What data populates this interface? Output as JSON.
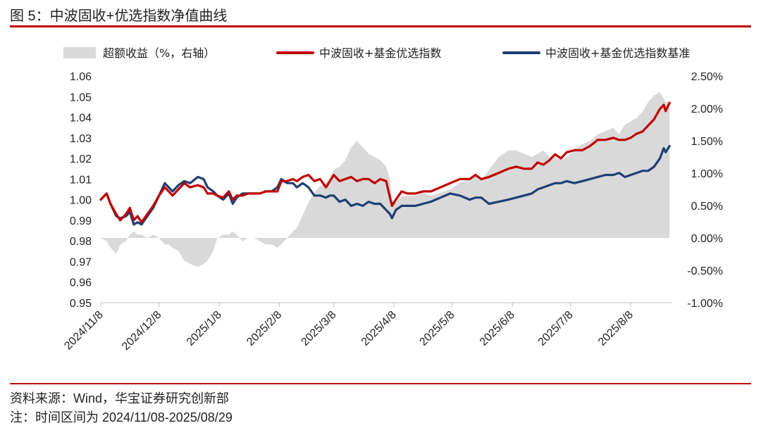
{
  "header": {
    "title": "图 5：中波固收+优选指数净值曲线"
  },
  "footer": {
    "source": "资料来源：Wind，华宝证券研究创新部",
    "note": "注：时间区间为 2024/11/08-2025/08/29"
  },
  "colors": {
    "index": "#c00000",
    "benchmark": "#1f3f74",
    "excess": "#d9d9d9",
    "rule": "#c00000"
  },
  "chart_data": {
    "type": "line",
    "title": "中波固收+优选指数净值曲线",
    "x_tick_labels": [
      "2024/11/8",
      "2024/12/8",
      "2025/1/8",
      "2025/2/8",
      "2025/3/8",
      "2025/4/8",
      "2025/5/8",
      "2025/6/8",
      "2025/7/8",
      "2025/8/8"
    ],
    "x_tick_days": [
      0,
      30,
      61,
      92,
      120,
      151,
      181,
      212,
      242,
      273
    ],
    "x_range_days": [
      0,
      294
    ],
    "y_left": {
      "lim": [
        0.95,
        1.06
      ],
      "ticks": [
        "0.95",
        "0.96",
        "0.97",
        "0.98",
        "0.99",
        "1.00",
        "1.01",
        "1.02",
        "1.03",
        "1.04",
        "1.05",
        "1.06"
      ]
    },
    "y_right": {
      "lim": [
        -1.0,
        2.5
      ],
      "unit": "%",
      "ticks": [
        "-1.00%",
        "-0.50%",
        "0.00%",
        "0.50%",
        "1.00%",
        "1.50%",
        "2.00%",
        "2.50%"
      ]
    },
    "legend": [
      {
        "name": "超额收益（%，右轴）",
        "kind": "area"
      },
      {
        "name": "中波固收+基金优选指数",
        "kind": "line"
      },
      {
        "name": "中波固收+基金优选指数基准",
        "kind": "line"
      }
    ],
    "series": [
      {
        "name": "中波固收+基金优选指数",
        "axis": "left",
        "points": [
          [
            0,
            1.0
          ],
          [
            3,
            1.003
          ],
          [
            5,
            0.998
          ],
          [
            8,
            0.993
          ],
          [
            10,
            0.99
          ],
          [
            13,
            0.993
          ],
          [
            15,
            0.996
          ],
          [
            17,
            0.99
          ],
          [
            19,
            0.992
          ],
          [
            21,
            0.989
          ],
          [
            24,
            0.993
          ],
          [
            27,
            0.997
          ],
          [
            30,
            1.002
          ],
          [
            33,
            1.006
          ],
          [
            35,
            1.004
          ],
          [
            37,
            1.002
          ],
          [
            40,
            1.005
          ],
          [
            43,
            1.008
          ],
          [
            46,
            1.006
          ],
          [
            50,
            1.007
          ],
          [
            53,
            1.006
          ],
          [
            55,
            1.003
          ],
          [
            58,
            1.003
          ],
          [
            60,
            1.002
          ],
          [
            63,
            1.001
          ],
          [
            66,
            1.004
          ],
          [
            68,
            1.0
          ],
          [
            70,
            1.002
          ],
          [
            73,
            1.002
          ],
          [
            76,
            1.003
          ],
          [
            79,
            1.003
          ],
          [
            82,
            1.003
          ],
          [
            85,
            1.004
          ],
          [
            88,
            1.004
          ],
          [
            91,
            1.004
          ],
          [
            93,
            1.009
          ],
          [
            96,
            1.009
          ],
          [
            99,
            1.01
          ],
          [
            101,
            1.009
          ],
          [
            104,
            1.011
          ],
          [
            107,
            1.012
          ],
          [
            110,
            1.009
          ],
          [
            113,
            1.01
          ],
          [
            116,
            1.006
          ],
          [
            118,
            1.009
          ],
          [
            120,
            1.012
          ],
          [
            123,
            1.009
          ],
          [
            126,
            1.01
          ],
          [
            129,
            1.011
          ],
          [
            132,
            1.009
          ],
          [
            135,
            1.01
          ],
          [
            138,
            1.01
          ],
          [
            141,
            1.008
          ],
          [
            144,
            1.01
          ],
          [
            147,
            1.009
          ],
          [
            149,
            1.001
          ],
          [
            150,
            0.997
          ],
          [
            152,
            1.0
          ],
          [
            155,
            1.004
          ],
          [
            158,
            1.003
          ],
          [
            162,
            1.003
          ],
          [
            166,
            1.004
          ],
          [
            170,
            1.004
          ],
          [
            175,
            1.006
          ],
          [
            180,
            1.008
          ],
          [
            185,
            1.01
          ],
          [
            190,
            1.01
          ],
          [
            193,
            1.012
          ],
          [
            196,
            1.01
          ],
          [
            200,
            1.011
          ],
          [
            205,
            1.013
          ],
          [
            210,
            1.015
          ],
          [
            214,
            1.016
          ],
          [
            218,
            1.015
          ],
          [
            222,
            1.015
          ],
          [
            225,
            1.018
          ],
          [
            228,
            1.017
          ],
          [
            231,
            1.019
          ],
          [
            234,
            1.022
          ],
          [
            237,
            1.02
          ],
          [
            240,
            1.023
          ],
          [
            244,
            1.024
          ],
          [
            248,
            1.024
          ],
          [
            252,
            1.026
          ],
          [
            256,
            1.029
          ],
          [
            260,
            1.029
          ],
          [
            264,
            1.03
          ],
          [
            267,
            1.029
          ],
          [
            270,
            1.029
          ],
          [
            273,
            1.03
          ],
          [
            276,
            1.032
          ],
          [
            279,
            1.033
          ],
          [
            282,
            1.036
          ],
          [
            285,
            1.039
          ],
          [
            288,
            1.044
          ],
          [
            290,
            1.046
          ],
          [
            291,
            1.043
          ],
          [
            293,
            1.047
          ]
        ]
      },
      {
        "name": "中波固收+基金优选指数基准",
        "axis": "left",
        "points": [
          [
            0,
            1.0
          ],
          [
            3,
            1.003
          ],
          [
            5,
            0.998
          ],
          [
            8,
            0.992
          ],
          [
            10,
            0.991
          ],
          [
            13,
            0.992
          ],
          [
            15,
            0.994
          ],
          [
            17,
            0.988
          ],
          [
            19,
            0.989
          ],
          [
            21,
            0.988
          ],
          [
            24,
            0.992
          ],
          [
            27,
            0.996
          ],
          [
            30,
            1.002
          ],
          [
            33,
            1.008
          ],
          [
            35,
            1.006
          ],
          [
            37,
            1.004
          ],
          [
            40,
            1.007
          ],
          [
            43,
            1.009
          ],
          [
            46,
            1.008
          ],
          [
            50,
            1.011
          ],
          [
            53,
            1.01
          ],
          [
            55,
            1.006
          ],
          [
            58,
            1.004
          ],
          [
            60,
            1.002
          ],
          [
            63,
            1.0
          ],
          [
            66,
            1.003
          ],
          [
            68,
            0.998
          ],
          [
            70,
            1.001
          ],
          [
            73,
            1.003
          ],
          [
            76,
            1.003
          ],
          [
            79,
            1.003
          ],
          [
            82,
            1.003
          ],
          [
            85,
            1.004
          ],
          [
            88,
            1.004
          ],
          [
            91,
            1.006
          ],
          [
            93,
            1.01
          ],
          [
            96,
            1.008
          ],
          [
            99,
            1.008
          ],
          [
            101,
            1.006
          ],
          [
            104,
            1.008
          ],
          [
            107,
            1.006
          ],
          [
            110,
            1.002
          ],
          [
            113,
            1.002
          ],
          [
            116,
            1.001
          ],
          [
            118,
            1.002
          ],
          [
            120,
            1.002
          ],
          [
            123,
            0.999
          ],
          [
            126,
            1.0
          ],
          [
            129,
            0.997
          ],
          [
            132,
            0.998
          ],
          [
            135,
            0.997
          ],
          [
            138,
            0.999
          ],
          [
            141,
            0.998
          ],
          [
            144,
            0.998
          ],
          [
            147,
            0.995
          ],
          [
            149,
            0.993
          ],
          [
            150,
            0.991
          ],
          [
            152,
            0.995
          ],
          [
            155,
            0.997
          ],
          [
            158,
            0.997
          ],
          [
            162,
            0.997
          ],
          [
            166,
            0.998
          ],
          [
            170,
            0.999
          ],
          [
            175,
            1.001
          ],
          [
            180,
            1.003
          ],
          [
            185,
            1.002
          ],
          [
            190,
            1.0
          ],
          [
            193,
            1.001
          ],
          [
            196,
            1.001
          ],
          [
            200,
            0.998
          ],
          [
            205,
            0.999
          ],
          [
            210,
            1.0
          ],
          [
            214,
            1.001
          ],
          [
            218,
            1.002
          ],
          [
            222,
            1.003
          ],
          [
            225,
            1.005
          ],
          [
            228,
            1.006
          ],
          [
            231,
            1.007
          ],
          [
            234,
            1.008
          ],
          [
            237,
            1.008
          ],
          [
            240,
            1.009
          ],
          [
            244,
            1.008
          ],
          [
            248,
            1.009
          ],
          [
            252,
            1.01
          ],
          [
            256,
            1.011
          ],
          [
            260,
            1.012
          ],
          [
            264,
            1.012
          ],
          [
            267,
            1.013
          ],
          [
            270,
            1.011
          ],
          [
            273,
            1.012
          ],
          [
            276,
            1.013
          ],
          [
            279,
            1.014
          ],
          [
            282,
            1.014
          ],
          [
            285,
            1.016
          ],
          [
            288,
            1.02
          ],
          [
            290,
            1.025
          ],
          [
            291,
            1.023
          ],
          [
            293,
            1.026
          ]
        ]
      },
      {
        "name": "超额收益（%，右轴）",
        "axis": "right",
        "type": "area",
        "points": [
          [
            0,
            0.0
          ],
          [
            3,
            -0.05
          ],
          [
            5,
            -0.15
          ],
          [
            8,
            -0.25
          ],
          [
            10,
            -0.1
          ],
          [
            13,
            -0.05
          ],
          [
            15,
            0.05
          ],
          [
            17,
            0.1
          ],
          [
            19,
            0.05
          ],
          [
            21,
            0.05
          ],
          [
            24,
            0.0
          ],
          [
            27,
            0.05
          ],
          [
            30,
            0.0
          ],
          [
            33,
            -0.1
          ],
          [
            35,
            -0.1
          ],
          [
            37,
            -0.15
          ],
          [
            40,
            -0.2
          ],
          [
            43,
            -0.35
          ],
          [
            46,
            -0.4
          ],
          [
            50,
            -0.45
          ],
          [
            53,
            -0.4
          ],
          [
            55,
            -0.35
          ],
          [
            58,
            -0.2
          ],
          [
            60,
            0.0
          ],
          [
            63,
            0.05
          ],
          [
            66,
            0.05
          ],
          [
            68,
            0.1
          ],
          [
            70,
            0.05
          ],
          [
            73,
            -0.05
          ],
          [
            76,
            0.0
          ],
          [
            79,
            0.0
          ],
          [
            82,
            -0.05
          ],
          [
            85,
            -0.1
          ],
          [
            88,
            -0.1
          ],
          [
            91,
            -0.15
          ],
          [
            93,
            -0.1
          ],
          [
            96,
            0.0
          ],
          [
            99,
            0.1
          ],
          [
            101,
            0.15
          ],
          [
            104,
            0.35
          ],
          [
            107,
            0.55
          ],
          [
            110,
            0.7
          ],
          [
            113,
            0.8
          ],
          [
            116,
            0.85
          ],
          [
            118,
            0.9
          ],
          [
            120,
            1.05
          ],
          [
            123,
            1.1
          ],
          [
            126,
            1.2
          ],
          [
            129,
            1.4
          ],
          [
            132,
            1.5
          ],
          [
            135,
            1.4
          ],
          [
            138,
            1.3
          ],
          [
            141,
            1.25
          ],
          [
            144,
            1.2
          ],
          [
            147,
            1.1
          ],
          [
            149,
            0.9
          ],
          [
            150,
            0.6
          ],
          [
            152,
            0.55
          ],
          [
            155,
            0.65
          ],
          [
            158,
            0.65
          ],
          [
            162,
            0.65
          ],
          [
            166,
            0.7
          ],
          [
            170,
            0.65
          ],
          [
            175,
            0.7
          ],
          [
            180,
            0.75
          ],
          [
            185,
            0.85
          ],
          [
            190,
            0.9
          ],
          [
            193,
            1.0
          ],
          [
            196,
            0.9
          ],
          [
            200,
            1.05
          ],
          [
            205,
            1.25
          ],
          [
            210,
            1.35
          ],
          [
            214,
            1.35
          ],
          [
            218,
            1.3
          ],
          [
            222,
            1.25
          ],
          [
            225,
            1.3
          ],
          [
            228,
            1.35
          ],
          [
            231,
            1.25
          ],
          [
            234,
            1.25
          ],
          [
            237,
            1.2
          ],
          [
            240,
            1.25
          ],
          [
            244,
            1.35
          ],
          [
            248,
            1.45
          ],
          [
            252,
            1.5
          ],
          [
            256,
            1.6
          ],
          [
            260,
            1.65
          ],
          [
            264,
            1.7
          ],
          [
            267,
            1.6
          ],
          [
            270,
            1.75
          ],
          [
            273,
            1.8
          ],
          [
            276,
            1.85
          ],
          [
            279,
            1.95
          ],
          [
            282,
            2.1
          ],
          [
            285,
            2.2
          ],
          [
            288,
            2.25
          ],
          [
            290,
            2.15
          ],
          [
            291,
            2.1
          ],
          [
            293,
            2.1
          ]
        ]
      }
    ]
  }
}
